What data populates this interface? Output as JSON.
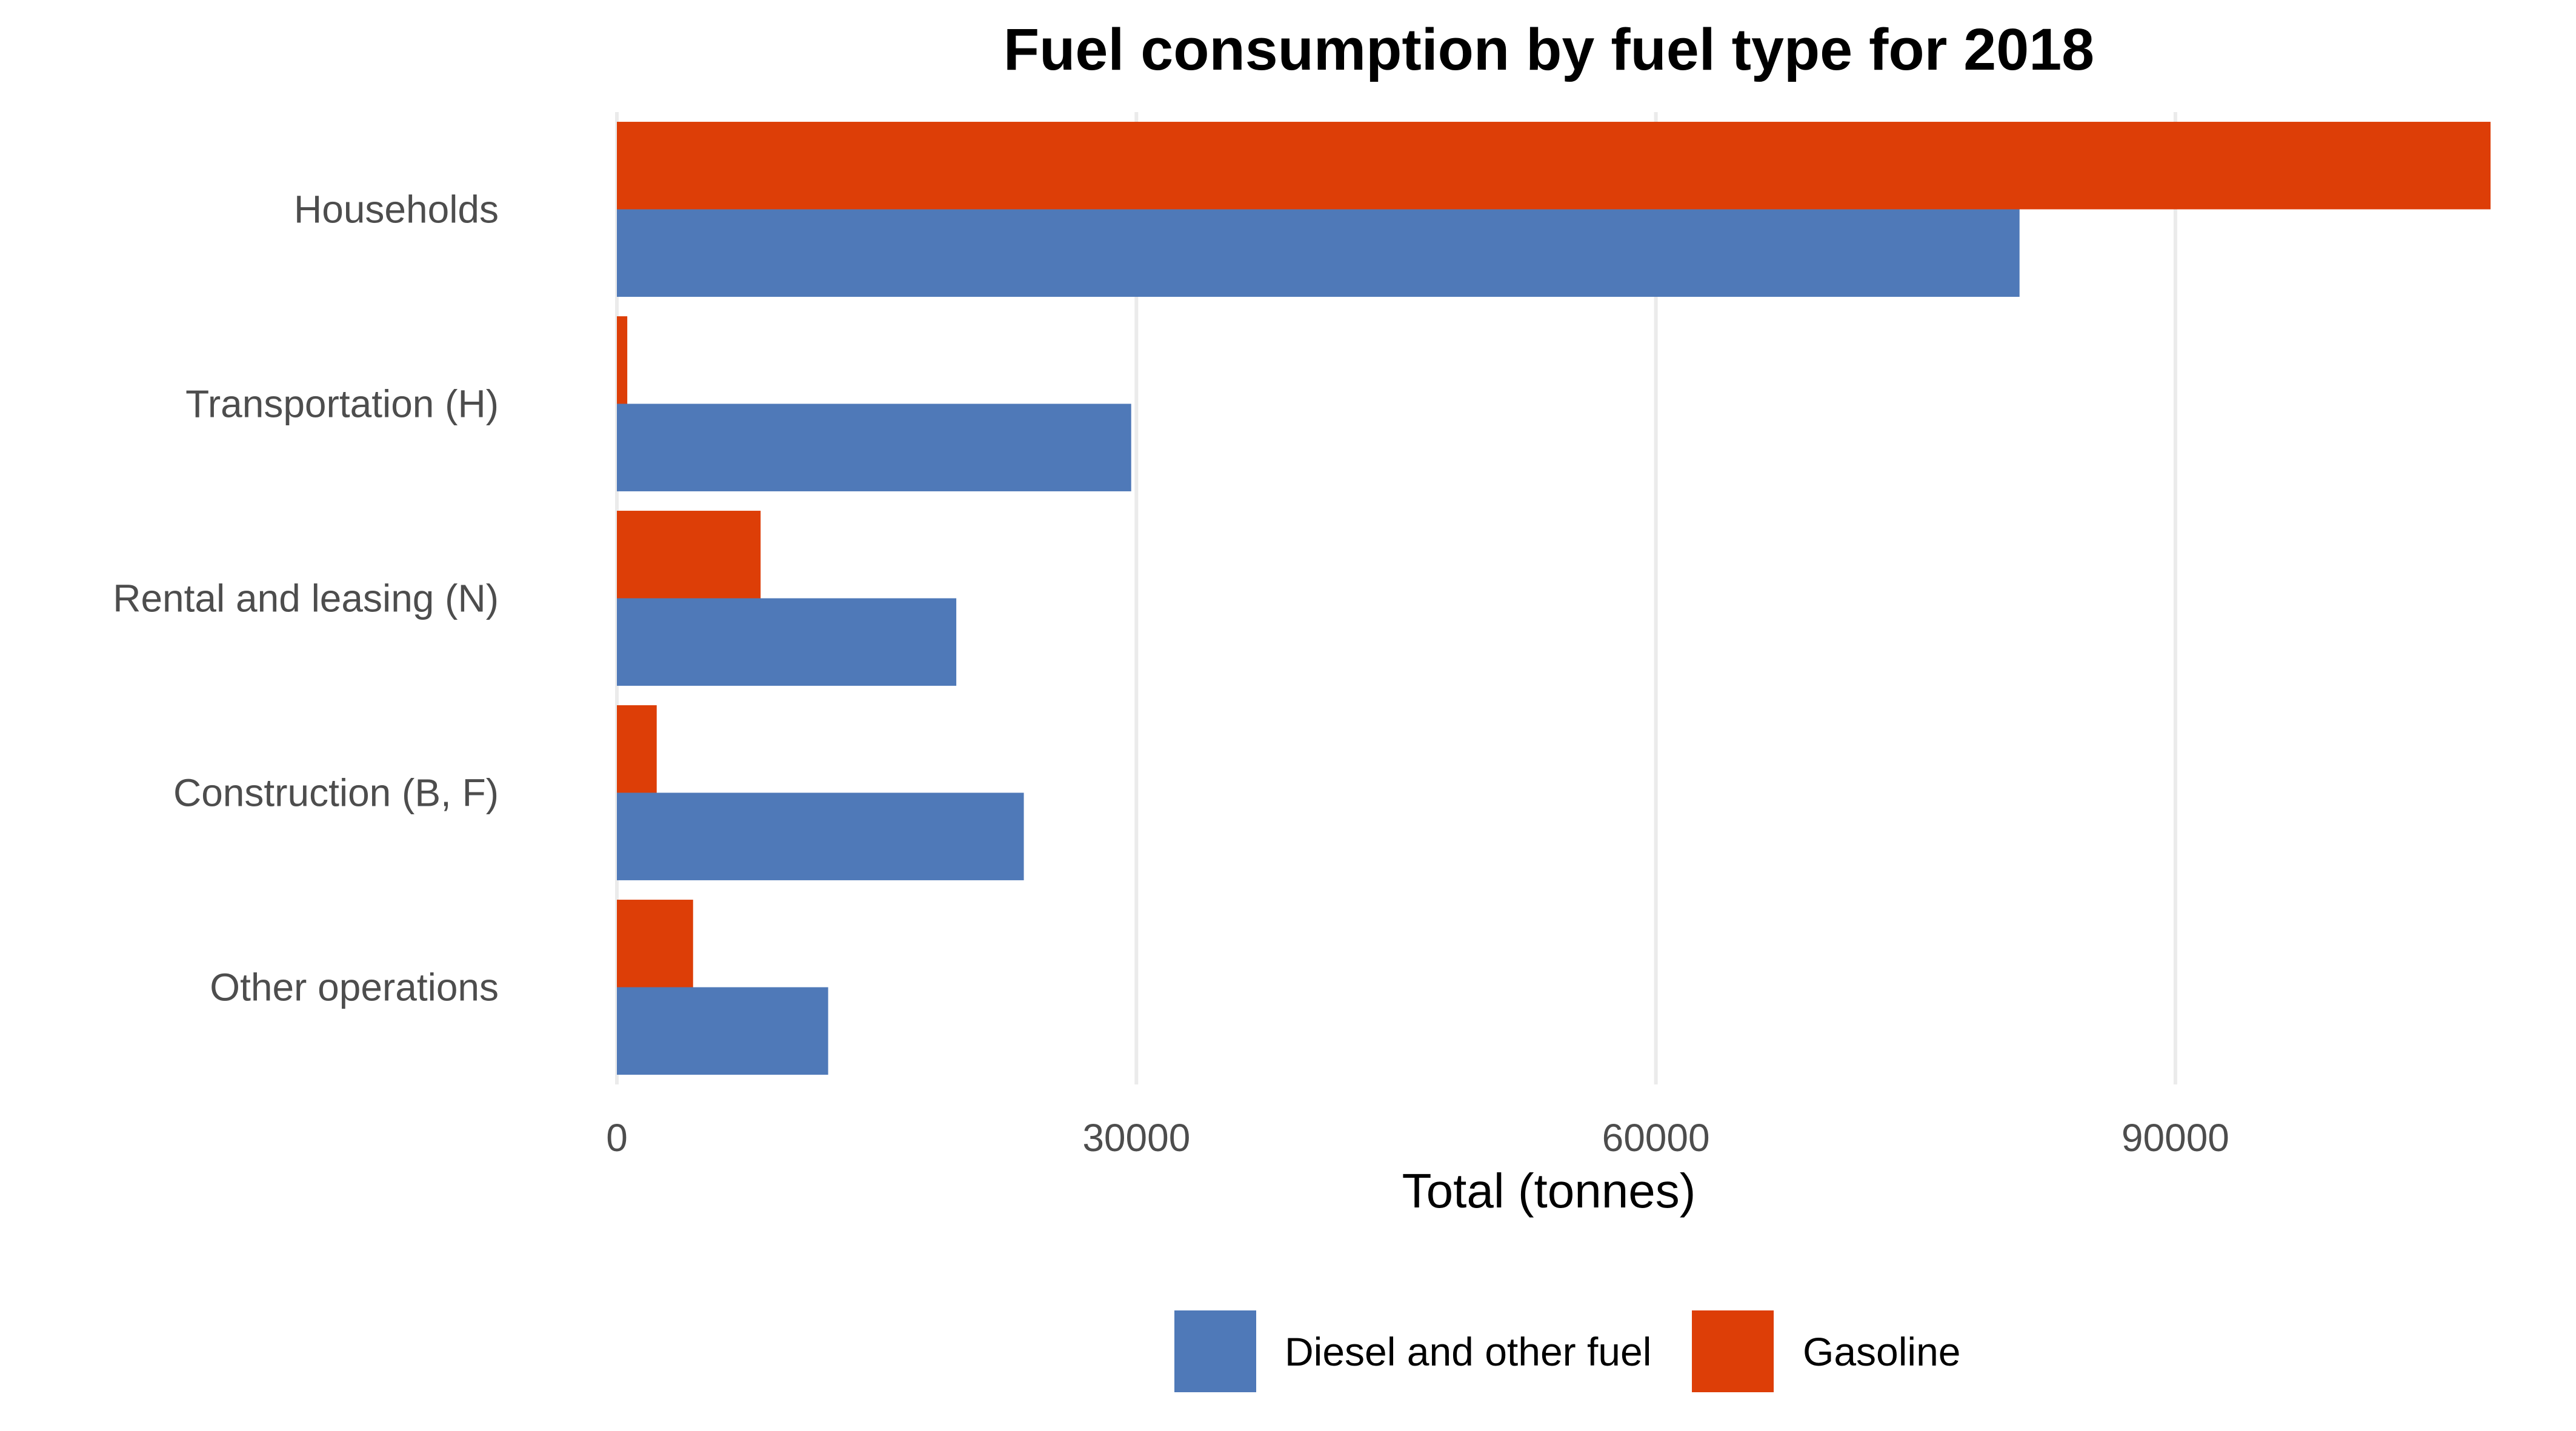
{
  "chart_data": {
    "type": "bar",
    "orientation": "horizontal",
    "title": "Fuel consumption by fuel type for 2018",
    "xlabel": "Total (tonnes)",
    "ylabel": "",
    "categories": [
      "Households",
      "Transportation (H)",
      "Rental and leasing (N)",
      "Construction (B, F)",
      "Other operations"
    ],
    "series": [
      {
        "name": "Diesel and other fuel",
        "color": "#4f79b8",
        "values": [
          81000,
          29700,
          19600,
          23500,
          12200
        ]
      },
      {
        "name": "Gasoline",
        "color": "#dd3e07",
        "values": [
          108200,
          600,
          8300,
          2300,
          4400
        ]
      }
    ],
    "xlim": [
      0,
      108200
    ],
    "xticks": [
      0,
      30000,
      60000,
      90000
    ],
    "xtick_labels": [
      "0",
      "30000",
      "60000",
      "90000"
    ],
    "grid": true,
    "legend_position": "bottom"
  }
}
